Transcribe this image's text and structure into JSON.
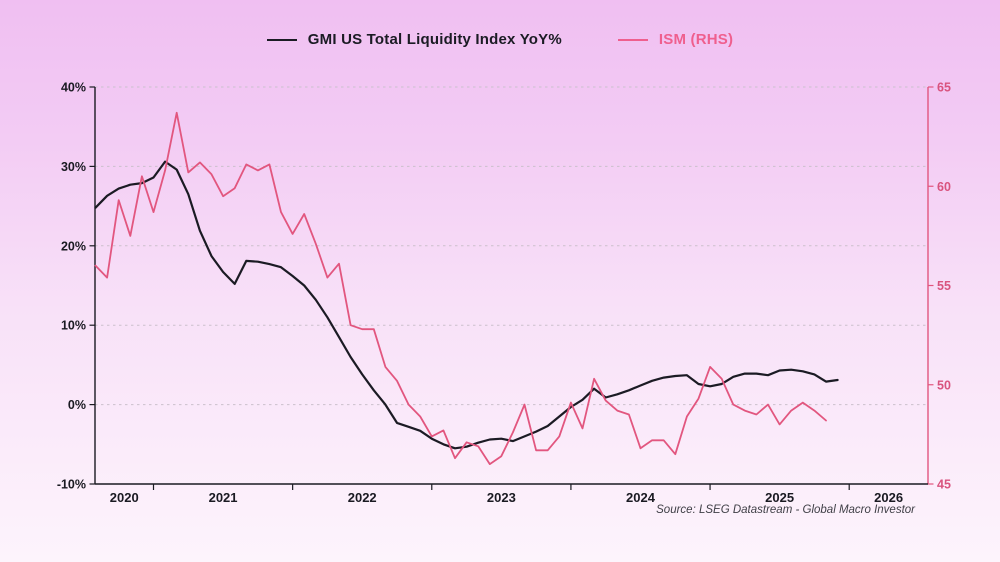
{
  "legend": [
    {
      "label": "GMI US Total Liquidity Index YoY%",
      "color": "#1b1b24"
    },
    {
      "label": "ISM (RHS)",
      "color": "#ef5f8e"
    }
  ],
  "source_note": "Source: LSEG Datastream - Global Macro Investor",
  "chart_data": {
    "type": "line",
    "title": "",
    "x_unit": "month",
    "x_start": "2020-08",
    "grid": "horizontal-dashed",
    "legend_position": "top-center",
    "left_axis": {
      "tick_labels": [
        "40%",
        "30%",
        "20%",
        "10%",
        "0%",
        "-10%"
      ],
      "tick_values": [
        40,
        30,
        20,
        10,
        0,
        -10
      ],
      "range": [
        -10,
        40
      ],
      "color": "#1a1a22"
    },
    "right_axis": {
      "tick_labels": [
        "65",
        "60",
        "55",
        "50",
        "45"
      ],
      "tick_values": [
        65,
        60,
        55,
        50,
        45
      ],
      "range": [
        45,
        65
      ],
      "color": "#d9537e"
    },
    "x_axis": {
      "year_labels": [
        "2020",
        "2021",
        "2022",
        "2023",
        "2024",
        "2025",
        "2026"
      ],
      "tick_years": [
        2021,
        2022,
        2023,
        2024,
        2025,
        2026
      ],
      "color": "#1a1a22"
    },
    "series": [
      {
        "name": "GMI US Total Liquidity Index YoY%",
        "axis": "left",
        "color": "#1b1b24",
        "width": 2.2,
        "start_month": "2020-08",
        "values": [
          24.8,
          26.3,
          27.2,
          27.7,
          27.9,
          28.6,
          30.6,
          29.6,
          26.5,
          21.9,
          18.7,
          16.7,
          15.2,
          18.1,
          18.0,
          17.7,
          17.3,
          16.2,
          15.0,
          13.2,
          11.0,
          8.5,
          6.0,
          3.8,
          1.8,
          0.0,
          -2.3,
          -2.8,
          -3.3,
          -4.3,
          -5.0,
          -5.5,
          -5.3,
          -4.8,
          -4.4,
          -4.3,
          -4.6,
          -4.0,
          -3.4,
          -2.7,
          -1.5,
          -0.3,
          0.6,
          2.0,
          0.9,
          1.3,
          1.8,
          2.4,
          3.0,
          3.4,
          3.6,
          3.7,
          2.6,
          2.3,
          2.6,
          3.5,
          3.9,
          3.9,
          3.7,
          4.3,
          4.4,
          4.2,
          3.8,
          2.9,
          3.1
        ]
      },
      {
        "name": "ISM (RHS)",
        "axis": "right",
        "color": "#e2567f",
        "width": 1.8,
        "start_month": "2020-08",
        "values": [
          56.0,
          55.4,
          59.3,
          57.5,
          60.5,
          58.7,
          60.8,
          63.7,
          60.7,
          61.2,
          60.6,
          59.5,
          59.9,
          61.1,
          60.8,
          61.1,
          58.7,
          57.6,
          58.6,
          57.1,
          55.4,
          56.1,
          53.0,
          52.8,
          52.8,
          50.9,
          50.2,
          49.0,
          48.4,
          47.4,
          47.7,
          46.3,
          47.1,
          46.9,
          46.0,
          46.4,
          47.6,
          49.0,
          46.7,
          46.7,
          47.4,
          49.1,
          47.8,
          50.3,
          49.2,
          48.7,
          48.5,
          46.8,
          47.2,
          47.2,
          46.5,
          48.4,
          49.3,
          50.9,
          50.3,
          49.0,
          48.7,
          48.5,
          49.0,
          48.0,
          48.7,
          49.1,
          48.7,
          48.2
        ]
      }
    ]
  }
}
